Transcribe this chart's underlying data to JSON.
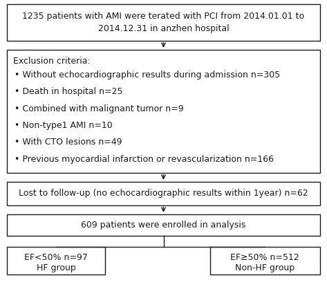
{
  "bg_color": "#ffffff",
  "box_edge_color": "#1a1a1a",
  "box_face_color": "#ffffff",
  "arrow_color": "#1a1a1a",
  "text_color": "#1a1a1a",
  "box1_text": "1235 patients with AMI were terated with PCI from 2014.01.01 to\n2014.12.31 in anzhen hospital",
  "box2_title": "Exclusion criteria:",
  "box2_bullets": [
    "Without echocardiographic results during admission n=305",
    "Death in hospital n=25",
    "Combined with malignant tumor n=9",
    "Non-type1 AMI n=10",
    "With CTO lesions n=49",
    "Previous myocardial infarction or revascularization n=166"
  ],
  "box3_text": "Lost to follow-up (no echocardiographic results within 1year) n=62",
  "box4_text": "609 patients were enrolled in analysis",
  "box5_line1": "EF<50% n=97",
  "box5_line2": "HF group",
  "box6_line1": "EF≥50% n=512",
  "box6_line2": "Non-HF group",
  "font_size": 9.0,
  "lw": 1.0
}
